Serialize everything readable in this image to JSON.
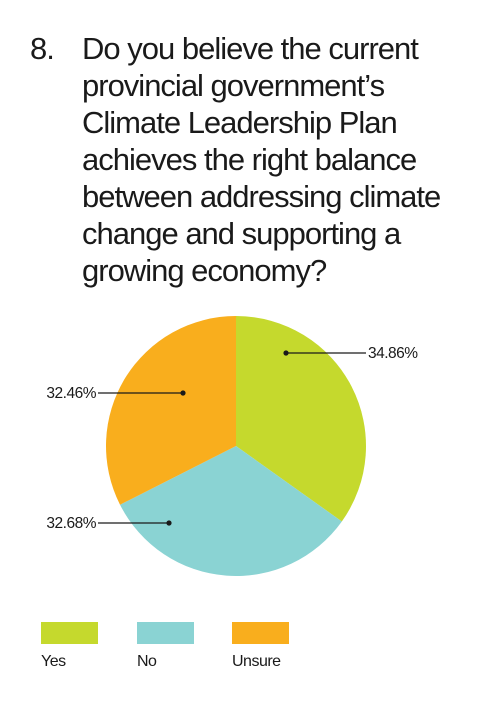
{
  "question": {
    "number": "8.",
    "text": "Do you believe the current provincial government’s Climate Leadership Plan achieves the right balance between addressing climate change and supporting a growing economy?"
  },
  "colors": {
    "yes": "#c5d92d",
    "no": "#8ad3d3",
    "unsure": "#f9ae1d"
  },
  "chart_data": {
    "type": "pie",
    "categories": [
      "Yes",
      "No",
      "Unsure"
    ],
    "values": [
      34.86,
      32.68,
      32.46
    ],
    "value_labels": [
      "34.86%",
      "32.68%",
      "32.46%"
    ],
    "colors": [
      "#c5d92d",
      "#8ad3d3",
      "#f9ae1d"
    ],
    "legend_position": "bottom"
  },
  "legend": [
    {
      "label": "Yes",
      "color": "#c5d92d"
    },
    {
      "label": "No",
      "color": "#8ad3d3"
    },
    {
      "label": "Unsure",
      "color": "#f9ae1d"
    }
  ]
}
